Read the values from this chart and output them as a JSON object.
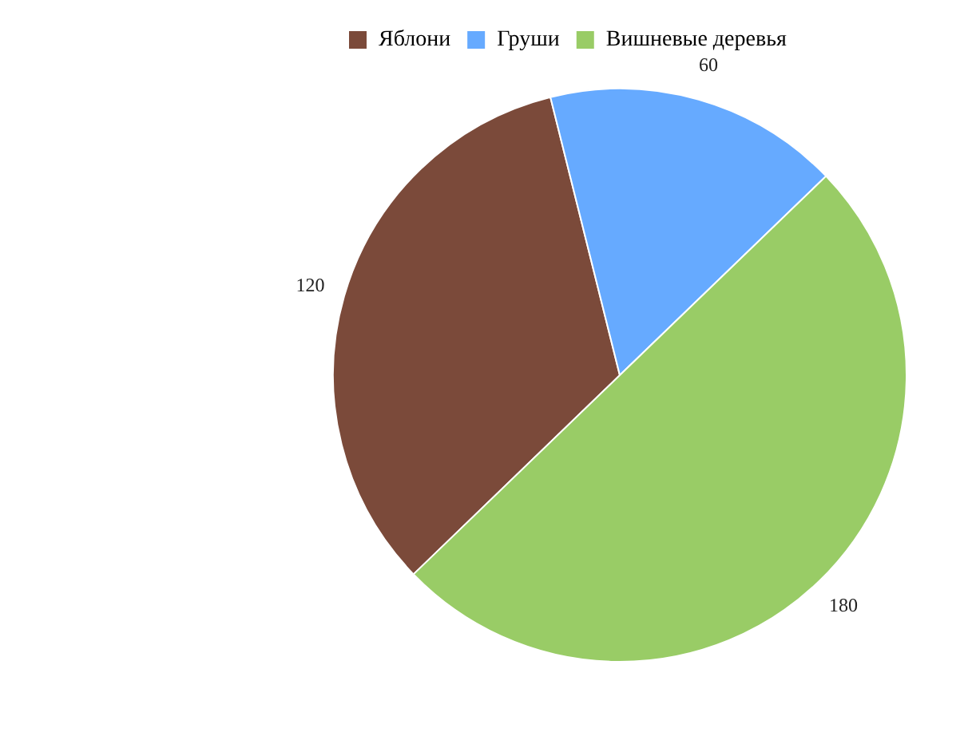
{
  "chart_data": {
    "type": "pie",
    "categories": [
      "Яблони",
      "Груши",
      "Вишневые деревья"
    ],
    "values": [
      120,
      60,
      180
    ],
    "colors": [
      "#7b4a3a",
      "#66aaff",
      "#99cc66"
    ],
    "data_labels": true,
    "legend": "top left"
  }
}
